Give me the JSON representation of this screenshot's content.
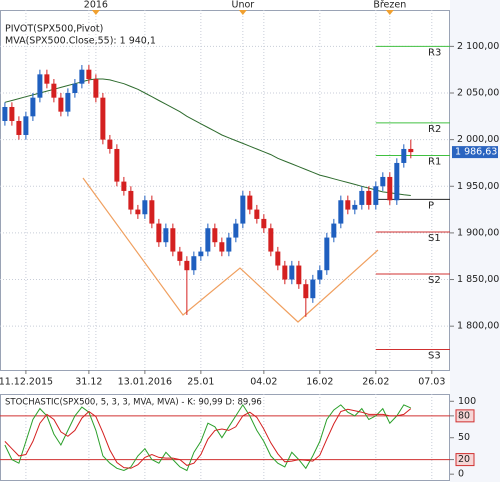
{
  "chart_data": {
    "type": "candlestick",
    "legend": [
      "PIVOT(SPX500,Pivot)",
      "MVA(SPX500.Close,55): 1 940,1"
    ],
    "xlim": [
      -0.7,
      63.6
    ],
    "xticks": [
      {
        "value": 3,
        "label": "11.12.2015"
      },
      {
        "value": 12,
        "label": "31.12"
      },
      {
        "value": 20,
        "label": "13.01.2016"
      },
      {
        "value": 28,
        "label": "25.01"
      },
      {
        "value": 37,
        "label": "04.02"
      },
      {
        "value": 45,
        "label": "16.02"
      },
      {
        "value": 53,
        "label": "26.02"
      },
      {
        "value": 61,
        "label": "07.03"
      }
    ],
    "period_ticks": [
      {
        "value": 13,
        "label": "2016"
      },
      {
        "value": 34,
        "label": "Únor"
      },
      {
        "value": 55,
        "label": "Březen"
      }
    ],
    "ylim": [
      1753,
      2139
    ],
    "yticks": [
      {
        "value": 1800,
        "label": "1 800,00"
      },
      {
        "value": 1850,
        "label": "1 850,00"
      },
      {
        "value": 1900,
        "label": "1 900,00"
      },
      {
        "value": 1950,
        "label": "1 950,00"
      },
      {
        "value": 2000,
        "label": "2 000,00"
      },
      {
        "value": 2050,
        "label": "2 050,00"
      },
      {
        "value": 2100,
        "label": "2 100,00"
      }
    ],
    "grid": true,
    "up_color": "#1f5fbf",
    "down_color": "#d42020",
    "open": [
      2020,
      2035,
      2020,
      2005,
      2025,
      2045,
      2070,
      2060,
      2045,
      2030,
      2050,
      2060,
      2075,
      2065,
      2045,
      2000,
      1990,
      1955,
      1945,
      1925,
      1920,
      1935,
      1910,
      1890,
      1905,
      1880,
      1870,
      1860,
      1875,
      1880,
      1905,
      1890,
      1880,
      1895,
      1910,
      1940,
      1925,
      1915,
      1905,
      1880,
      1865,
      1850,
      1865,
      1845,
      1830,
      1850,
      1860,
      1895,
      1910,
      1935,
      1925,
      1930,
      1945,
      1930,
      1950,
      1960,
      1935,
      1975,
      1990
    ],
    "high": [
      2040,
      2040,
      2025,
      2030,
      2050,
      2075,
      2075,
      2065,
      2050,
      2055,
      2065,
      2080,
      2080,
      2070,
      2050,
      2005,
      1995,
      1960,
      1950,
      1930,
      1940,
      1940,
      1915,
      1910,
      1910,
      1885,
      1875,
      1880,
      1885,
      1910,
      1910,
      1895,
      1900,
      1915,
      1945,
      1945,
      1930,
      1920,
      1910,
      1885,
      1870,
      1870,
      1870,
      1850,
      1855,
      1865,
      1900,
      1915,
      1940,
      1940,
      1935,
      1950,
      1950,
      1955,
      1965,
      1965,
      1980,
      1995,
      2000
    ],
    "low": [
      2015,
      2015,
      2000,
      2000,
      2020,
      2040,
      2055,
      2040,
      2025,
      2025,
      2045,
      2055,
      2060,
      2040,
      1995,
      1985,
      1950,
      1940,
      1920,
      1915,
      1915,
      1905,
      1885,
      1885,
      1875,
      1865,
      1812,
      1855,
      1870,
      1875,
      1885,
      1875,
      1875,
      1890,
      1905,
      1920,
      1910,
      1900,
      1875,
      1860,
      1845,
      1845,
      1840,
      1810,
      1825,
      1845,
      1855,
      1890,
      1905,
      1920,
      1920,
      1925,
      1925,
      1925,
      1945,
      1930,
      1930,
      1970,
      1980
    ],
    "close": [
      2035,
      2020,
      2005,
      2025,
      2045,
      2070,
      2060,
      2045,
      2030,
      2050,
      2060,
      2075,
      2065,
      2045,
      2000,
      1990,
      1955,
      1945,
      1925,
      1920,
      1935,
      1910,
      1890,
      1905,
      1880,
      1870,
      1860,
      1875,
      1880,
      1905,
      1890,
      1880,
      1895,
      1910,
      1940,
      1925,
      1915,
      1905,
      1880,
      1865,
      1850,
      1865,
      1845,
      1830,
      1850,
      1860,
      1895,
      1910,
      1935,
      1925,
      1930,
      1945,
      1930,
      1950,
      1960,
      1935,
      1975,
      1990,
      1986.63
    ],
    "last_price": {
      "value": 1986.63,
      "label": "1 986,63"
    },
    "ma": {
      "color": "#2e6b2e",
      "values": [
        2040,
        2042,
        2044,
        2046,
        2048,
        2050,
        2052,
        2054,
        2056,
        2058,
        2060,
        2062,
        2064,
        2065,
        2065,
        2064,
        2062,
        2060,
        2057,
        2054,
        2050,
        2046,
        2042,
        2038,
        2034,
        2030,
        2025,
        2021,
        2017,
        2013,
        2009,
        2005,
        2002,
        1999,
        1996,
        1993,
        1990,
        1987,
        1984,
        1980,
        1977,
        1974,
        1971,
        1968,
        1965,
        1962,
        1960,
        1958,
        1956,
        1954,
        1952,
        1950,
        1948,
        1946,
        1944,
        1943,
        1942,
        1941,
        1940.1
      ]
    },
    "pivots_from": 53,
    "pivots": [
      {
        "name": "R3",
        "value": 2100,
        "color": "#40c040"
      },
      {
        "name": "R2",
        "value": 2018,
        "color": "#40c040"
      },
      {
        "name": "R1",
        "value": 1983,
        "color": "#40c040"
      },
      {
        "name": "P",
        "value": 1936,
        "color": "#222222"
      },
      {
        "name": "S1",
        "value": 1901,
        "color": "#d03030"
      },
      {
        "name": "S2",
        "value": 1856,
        "color": "#d03030"
      },
      {
        "name": "S3",
        "value": 1775,
        "color": "#d03030"
      }
    ],
    "stochastic": {
      "title": "STOCHASTIC(SPX500, 5, 3, 3, MVA, MVA) - K: 90,99  D: 89,96",
      "ylim": [
        -8,
        110
      ],
      "yticks": [
        0,
        20,
        50,
        80,
        100
      ],
      "levels": [
        20,
        80
      ],
      "level_color": "#d03030",
      "series": [
        {
          "name": "K",
          "color": "#2ca02c",
          "values": [
            40,
            20,
            15,
            45,
            75,
            90,
            80,
            55,
            40,
            60,
            80,
            92,
            85,
            60,
            25,
            15,
            8,
            5,
            10,
            25,
            35,
            20,
            15,
            30,
            20,
            10,
            5,
            30,
            45,
            70,
            65,
            50,
            65,
            80,
            95,
            80,
            60,
            45,
            25,
            15,
            10,
            30,
            20,
            8,
            25,
            45,
            75,
            88,
            95,
            85,
            80,
            90,
            75,
            80,
            90,
            70,
            80,
            95,
            90.99
          ]
        },
        {
          "name": "D",
          "color": "#d42020",
          "values": [
            45,
            35,
            25,
            27,
            45,
            70,
            82,
            75,
            58,
            52,
            60,
            77,
            86,
            79,
            57,
            33,
            16,
            9,
            8,
            13,
            23,
            27,
            23,
            22,
            22,
            20,
            12,
            15,
            27,
            48,
            60,
            62,
            60,
            65,
            80,
            85,
            78,
            62,
            43,
            28,
            17,
            18,
            20,
            19,
            18,
            26,
            48,
            69,
            86,
            89,
            87,
            85,
            82,
            82,
            82,
            80,
            80,
            82,
            89.96
          ]
        }
      ]
    }
  }
}
